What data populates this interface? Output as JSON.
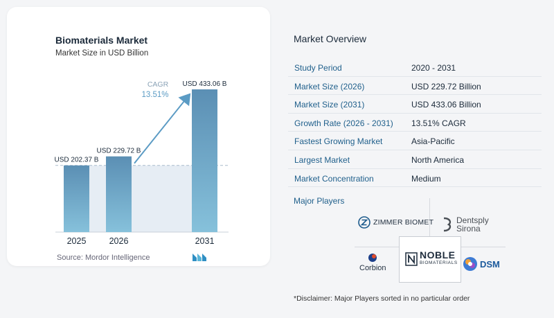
{
  "chart": {
    "title": "Biomaterials Market",
    "subtitle": "Market Size in USD Billion",
    "source": "Source:  Mordor Intelligence",
    "cagr_label": "CAGR",
    "cagr_value": "13.51%"
  },
  "chart_data": {
    "type": "bar",
    "categories": [
      "2025",
      "2026",
      "2031"
    ],
    "values": [
      202.37,
      229.72,
      433.06
    ],
    "data_labels": [
      "USD 202.37 B",
      "USD 229.72 B",
      "USD 433.06 B"
    ],
    "title": "Biomaterials Market",
    "subtitle": "Market Size in USD Billion",
    "xlabel": "",
    "ylabel": "",
    "ylim": [
      0,
      433.06
    ],
    "annotations": [
      "CAGR",
      "13.51%"
    ],
    "grid": false,
    "colors": {
      "bar_top": "#5b8fb4",
      "bar_bottom": "#7eb8d6",
      "shade": "#e8eef5",
      "arrow": "#5b9bc4"
    }
  },
  "overview": {
    "title": "Market Overview",
    "rows": [
      {
        "label": "Study Period",
        "value": "2020 - 2031"
      },
      {
        "label": "Market Size (2026)",
        "value": "USD 229.72 Billion"
      },
      {
        "label": "Market Size (2031)",
        "value": "USD 433.06 Billion"
      },
      {
        "label": "Growth Rate (2026 - 2031)",
        "value": "13.51% CAGR"
      },
      {
        "label": "Fastest Growing Market",
        "value": "Asia-Pacific"
      },
      {
        "label": "Largest Market",
        "value": "North America"
      },
      {
        "label": "Market Concentration",
        "value": "Medium"
      }
    ]
  },
  "players": {
    "title": "Major Players",
    "zimmer": "ZIMMER BIOMET",
    "dentsply_1": "Dentsply",
    "dentsply_2": "Sirona",
    "corbion": "Corbion",
    "noble_1": "NOBLE",
    "noble_2": "BIOMATERIALS",
    "dsm": "DSM"
  },
  "disclaimer": "*Disclaimer: Major Players sorted in no particular order"
}
